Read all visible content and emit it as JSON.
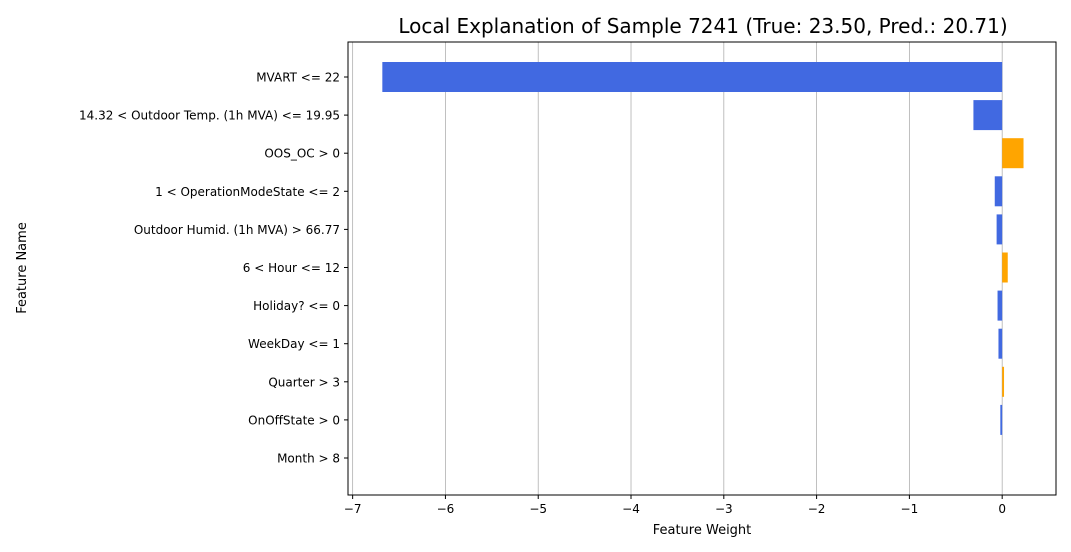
{
  "chart_data": {
    "type": "bar",
    "orientation": "horizontal",
    "title": "Local Explanation of Sample 7241 (True: 23.50, Pred.: 20.71)",
    "xlabel": "Feature Weight",
    "ylabel": "Feature Name",
    "xlim": [
      -7.05,
      0.58
    ],
    "xticks": [
      -7,
      -6,
      -5,
      -4,
      -3,
      -2,
      -1,
      0
    ],
    "xtick_labels": [
      "−7",
      "−6",
      "−5",
      "−4",
      "−3",
      "−2",
      "−1",
      "0"
    ],
    "grid": "x",
    "categories": [
      "MVART <= 22",
      "14.32 < Outdoor Temp. (1h MVA) <= 19.95",
      "OOS_OC > 0",
      "1 < OperationModeState <= 2",
      "Outdoor Humid. (1h MVA) > 66.77",
      "6 < Hour <= 12",
      "Holiday? <= 0",
      "WeekDay <= 1",
      "Quarter > 3",
      "OnOffState > 0",
      "Month > 8"
    ],
    "values": [
      -6.68,
      -0.31,
      0.23,
      -0.08,
      -0.06,
      0.06,
      -0.05,
      -0.04,
      0.02,
      -0.02,
      0.0
    ],
    "colors": {
      "negative": "#4169e1",
      "positive": "#ffa500",
      "grid": "#b0b0b0"
    }
  }
}
